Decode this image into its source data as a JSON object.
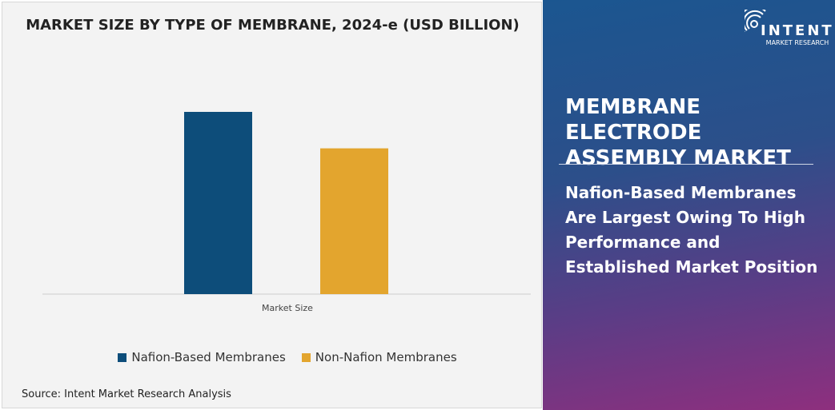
{
  "chart_data": {
    "type": "bar",
    "title": "MARKET SIZE BY TYPE OF MEMBRANE, 2024-e (USD BILLION)",
    "categories": [
      "Market Size"
    ],
    "series": [
      {
        "name": "Nafion-Based Membranes",
        "values": [
          1.0
        ],
        "color": "#0d4d7a"
      },
      {
        "name": "Non-Nafion Membranes",
        "values": [
          0.8
        ],
        "color": "#e3a52e"
      }
    ],
    "note_values": "relative; no axis values printed",
    "xlabel": "Market Size",
    "ylabel": "",
    "grid": false,
    "legend": "bottom"
  },
  "source": "Source: Intent Market Research Analysis",
  "panel": {
    "logo_main": "INTENT",
    "logo_sub": "MARKET RESEARCH",
    "title": "MEMBRANE ELECTRODE ASSEMBLY MARKET",
    "description": "Nafion-Based Membranes Are Largest Owing To High Performance and Established Market Position"
  }
}
